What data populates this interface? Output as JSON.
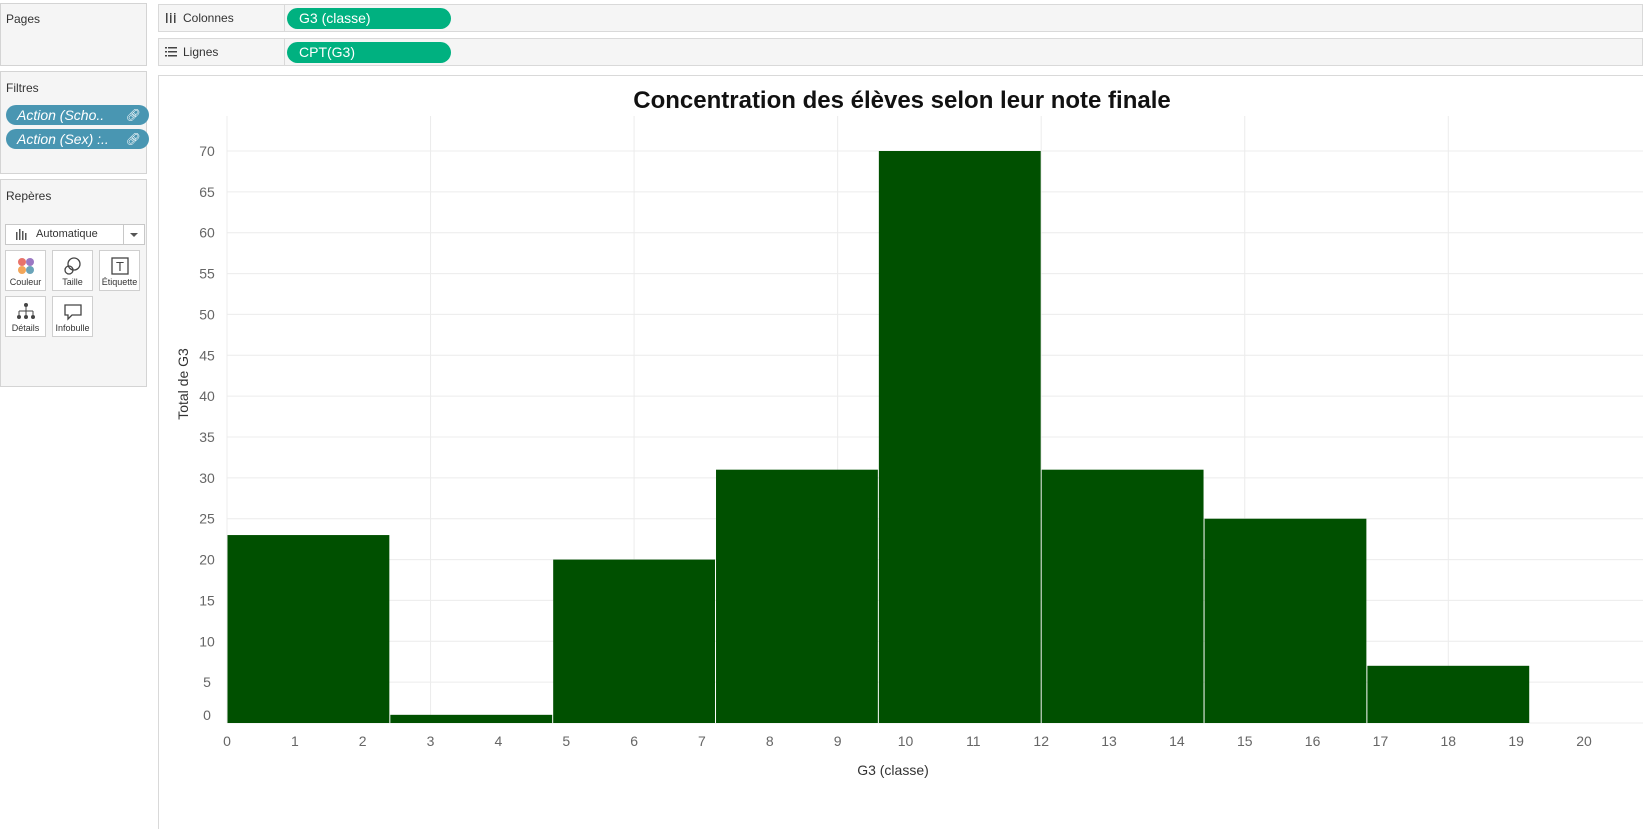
{
  "sidebar": {
    "pages_title": "Pages",
    "filters_title": "Filtres",
    "filters": [
      {
        "label": "Action (Scho..",
        "icon": "link-icon"
      },
      {
        "label": "Action (Sex) :..",
        "icon": "link-icon"
      }
    ],
    "marks_title": "Repères",
    "marks_type": "Automatique",
    "mark_buttons": [
      {
        "label": "Couleur",
        "icon": "color-dots-icon"
      },
      {
        "label": "Taille",
        "icon": "size-circles-icon"
      },
      {
        "label": "Étiquette",
        "icon": "label-t-icon"
      },
      {
        "label": "Détails",
        "icon": "detail-hierarchy-icon"
      },
      {
        "label": "Infobulle",
        "icon": "tooltip-speech-icon"
      }
    ]
  },
  "shelves": {
    "columns_label": "Colonnes",
    "columns_pill": "G3 (classe)",
    "rows_label": "Lignes",
    "rows_pill": "CPT(G3)"
  },
  "colors": {
    "bar": "#005000",
    "pill_green": "#00b180",
    "filter_blue": "#4996b2"
  },
  "chart_data": {
    "type": "bar",
    "title": "Concentration des élèves selon leur note finale",
    "xlabel": "G3 (classe)",
    "ylabel": "Total de G3",
    "bins": [
      {
        "start": 0,
        "end": 2.4,
        "value": 23
      },
      {
        "start": 2.4,
        "end": 4.8,
        "value": 1
      },
      {
        "start": 4.8,
        "end": 7.2,
        "value": 20
      },
      {
        "start": 7.2,
        "end": 9.6,
        "value": 31
      },
      {
        "start": 9.6,
        "end": 12.0,
        "value": 70
      },
      {
        "start": 12.0,
        "end": 14.4,
        "value": 31
      },
      {
        "start": 14.4,
        "end": 16.8,
        "value": 25
      },
      {
        "start": 16.8,
        "end": 19.2,
        "value": 7
      }
    ],
    "xticks": [
      0,
      1,
      2,
      3,
      4,
      5,
      6,
      7,
      8,
      9,
      10,
      11,
      12,
      13,
      14,
      15,
      16,
      17,
      18,
      19,
      20
    ],
    "yticks": [
      0,
      5,
      10,
      15,
      20,
      25,
      30,
      35,
      40,
      45,
      50,
      55,
      60,
      65,
      70
    ],
    "xlim": [
      0,
      20
    ],
    "ylim": [
      0,
      70
    ],
    "grid": true
  }
}
